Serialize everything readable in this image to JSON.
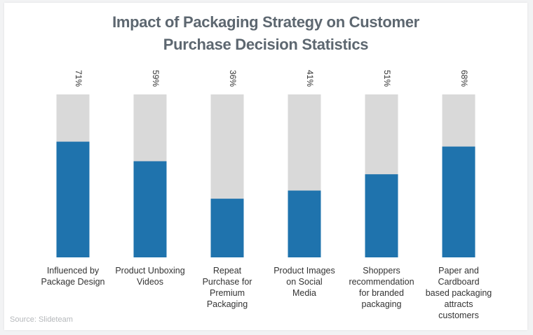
{
  "title_line1": "Impact of Packaging Strategy on Customer",
  "title_line2": "Purchase Decision Statistics",
  "source": "Source: Slideteam",
  "colors": {
    "bar_fill": "#1f73ad",
    "bar_track": "#d9d9d9",
    "text": "#333333",
    "title": "#5d6770"
  },
  "chart_data": {
    "type": "bar",
    "ylim": [
      0,
      100
    ],
    "categories": [
      [
        "Influenced by",
        "Package Design"
      ],
      [
        "Product Unboxing",
        "Videos"
      ],
      [
        "Repeat",
        "Purchase for",
        "Premium",
        "Packaging"
      ],
      [
        "Product Images",
        "on Social",
        "Media"
      ],
      [
        "Shoppers",
        "recommendation",
        "for branded",
        "packaging"
      ],
      [
        "Paper and",
        "Cardboard",
        "based packaging",
        "attracts",
        "customers"
      ]
    ],
    "values": [
      71,
      59,
      36,
      41,
      51,
      68
    ],
    "value_labels": [
      "71%",
      "59%",
      "36%",
      "41%",
      "51%",
      "68%"
    ]
  }
}
